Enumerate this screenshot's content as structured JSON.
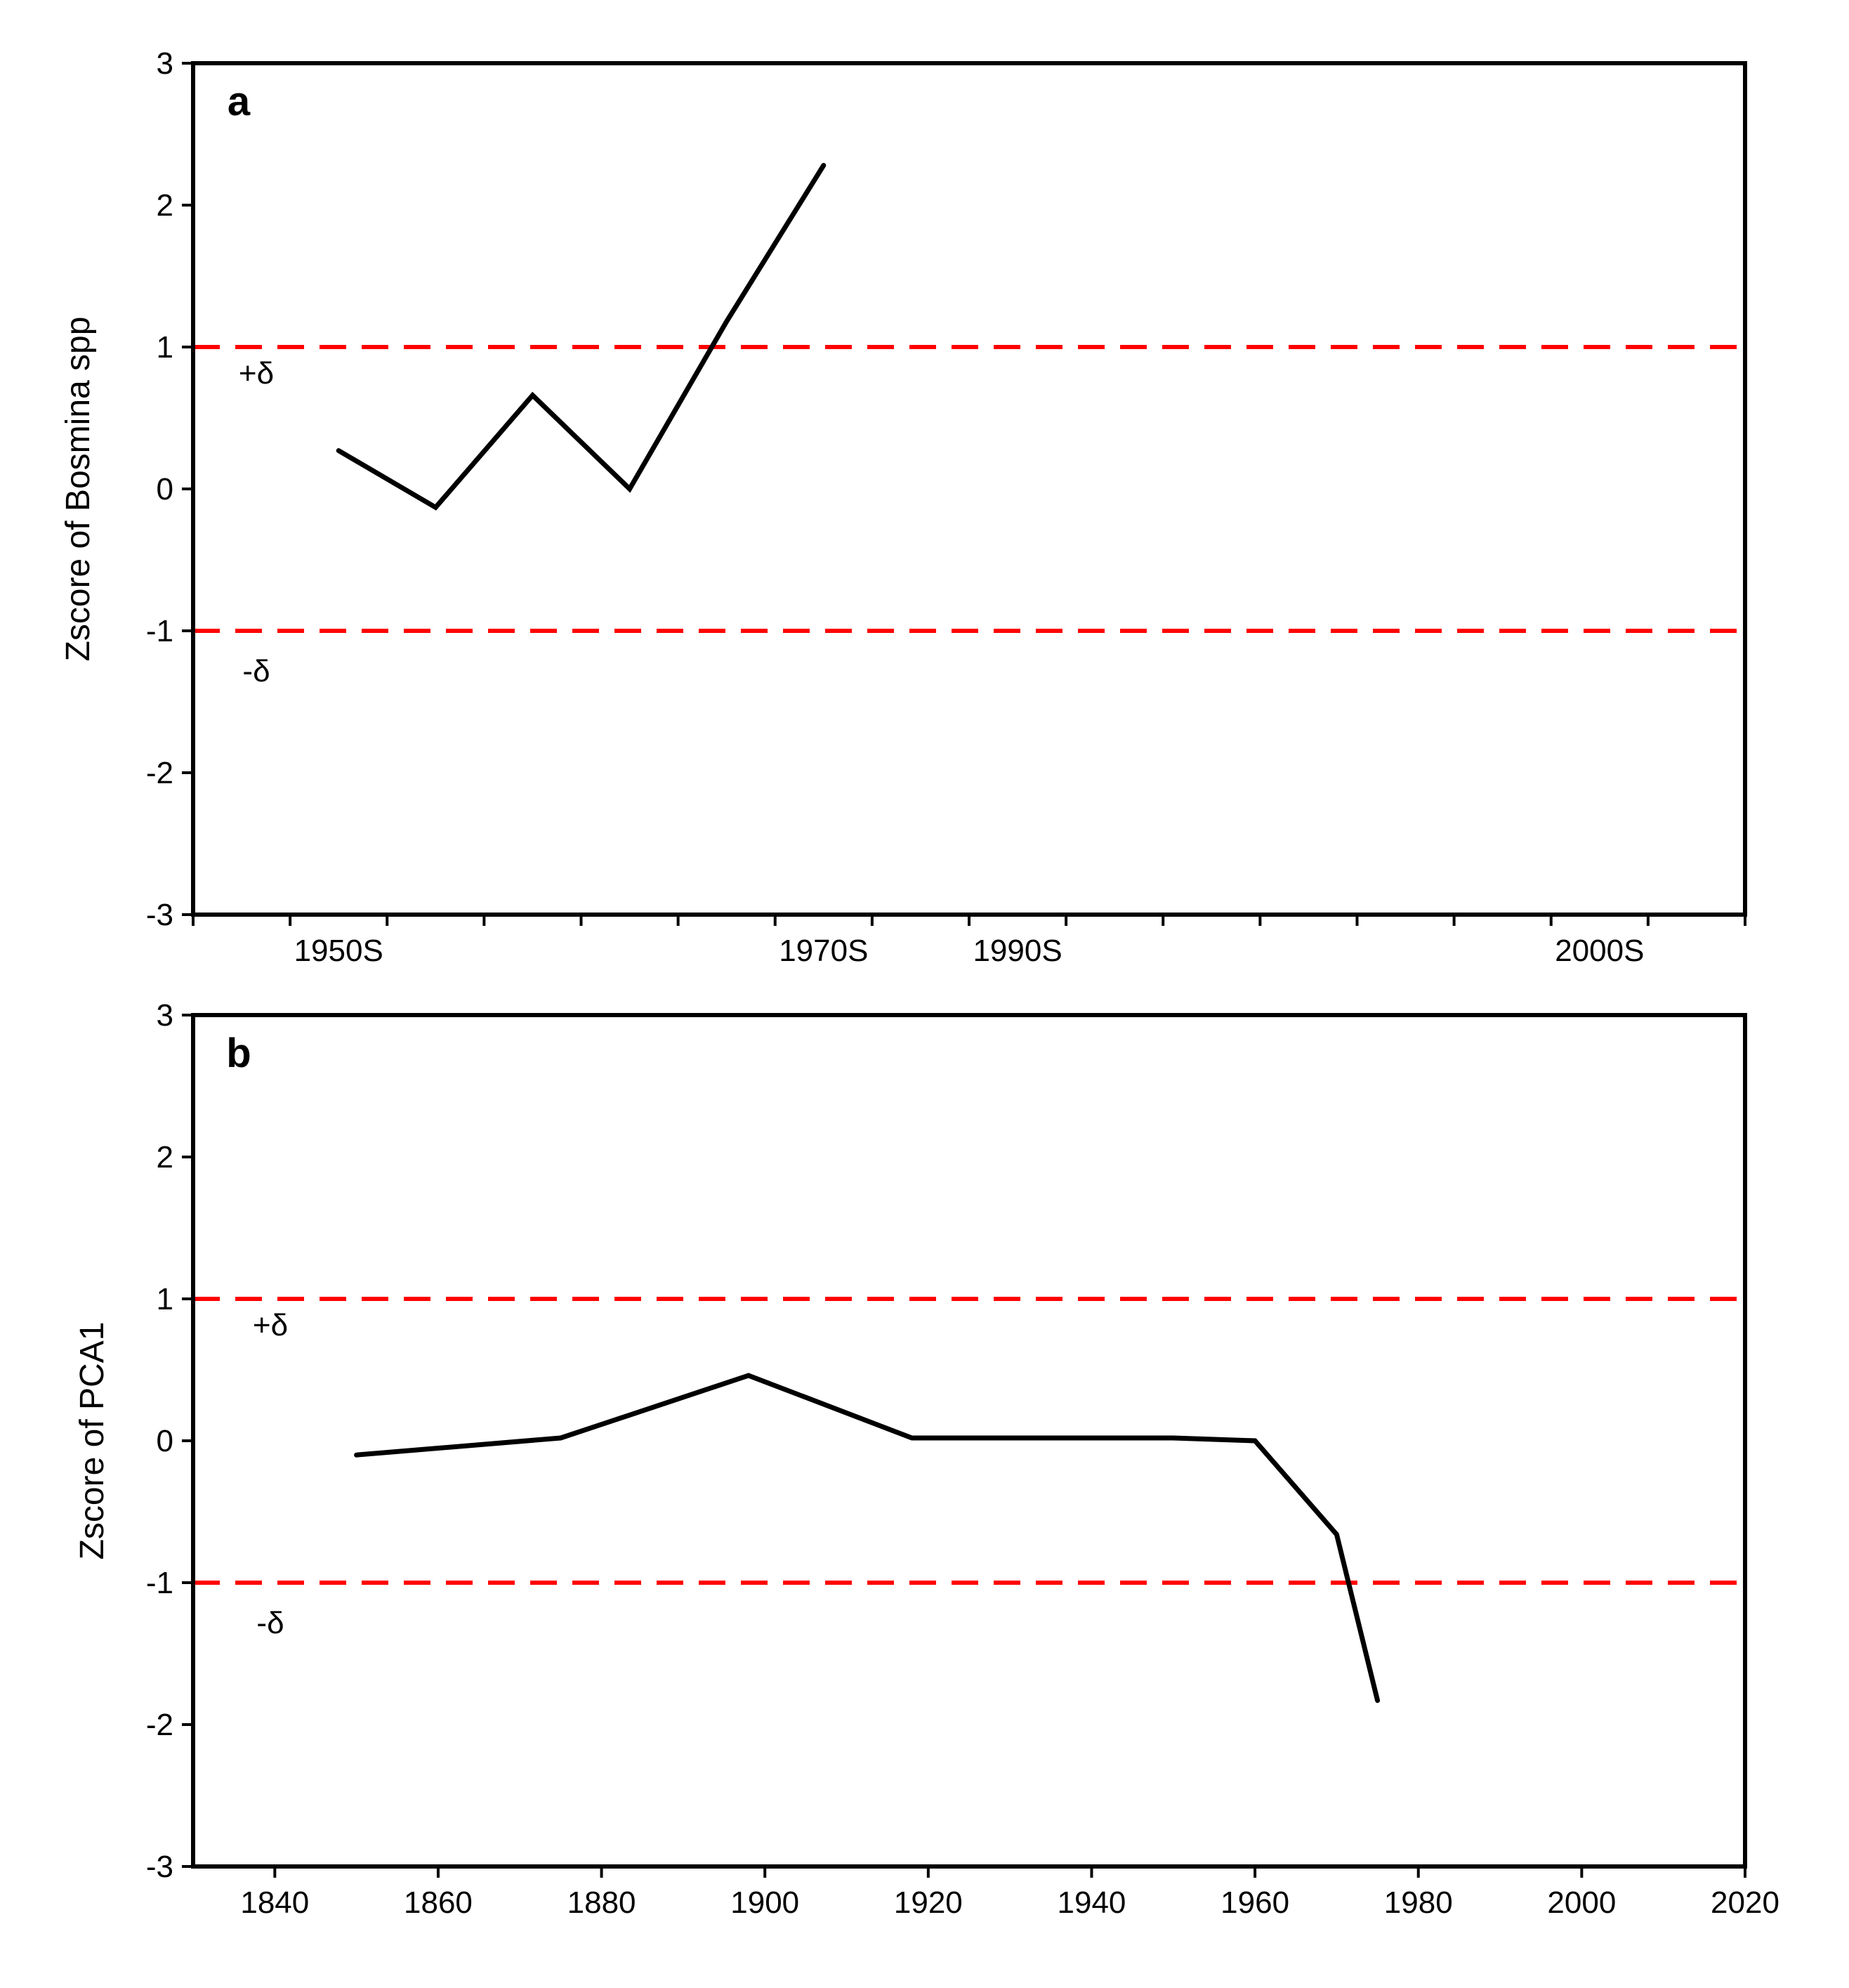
{
  "chart_data": [
    {
      "type": "line",
      "panel_label": "a",
      "ylabel": "Zscore of Bosmina spp",
      "ylim": [
        -3,
        3
      ],
      "y_ticks": [
        3,
        2,
        1,
        0,
        -1,
        -2,
        -3
      ],
      "y_tick_labels": [
        "3",
        "2",
        "1",
        "0",
        "-1",
        "-2",
        "-3"
      ],
      "x_tick_labels": [
        "1950S",
        "1970S",
        "1990S",
        "2000S"
      ],
      "x_tick_label_index": [
        1.5,
        6.5,
        8.5,
        14.5
      ],
      "x_minor_tick_count": 16,
      "series": [
        {
          "name": "Bosmina spp",
          "x_index": [
            1.5,
            2.5,
            3.5,
            4.5,
            5.5,
            6.5
          ],
          "values": [
            0.27,
            -0.13,
            0.66,
            0.0,
            1.18,
            2.28
          ]
        }
      ],
      "thresholds": [
        {
          "value": 1,
          "label": "+δ"
        },
        {
          "value": -1,
          "label": "-δ"
        }
      ]
    },
    {
      "type": "line",
      "panel_label": "b",
      "ylabel": "Zscore of PCA1",
      "ylim": [
        -3,
        3
      ],
      "xlim": [
        1830,
        2020
      ],
      "y_ticks": [
        3,
        2,
        1,
        0,
        -1,
        -2,
        -3
      ],
      "y_tick_labels": [
        "3",
        "2",
        "1",
        "0",
        "-1",
        "-2",
        "-3"
      ],
      "x_ticks": [
        1840,
        1860,
        1880,
        1900,
        1920,
        1940,
        1960,
        1980,
        2000,
        2020
      ],
      "x_tick_labels": [
        "1840",
        "1860",
        "1880",
        "1900",
        "1920",
        "1940",
        "1960",
        "1980",
        "2000",
        "2020"
      ],
      "series": [
        {
          "name": "PCA1",
          "x": [
            1850,
            1875,
            1898,
            1918,
            1950,
            1960,
            1970,
            1975
          ],
          "values": [
            -0.1,
            0.02,
            0.46,
            0.02,
            0.02,
            0.0,
            -0.66,
            -1.83
          ]
        }
      ],
      "thresholds": [
        {
          "value": 1,
          "label": "+δ"
        },
        {
          "value": -1,
          "label": "-δ"
        }
      ]
    }
  ]
}
